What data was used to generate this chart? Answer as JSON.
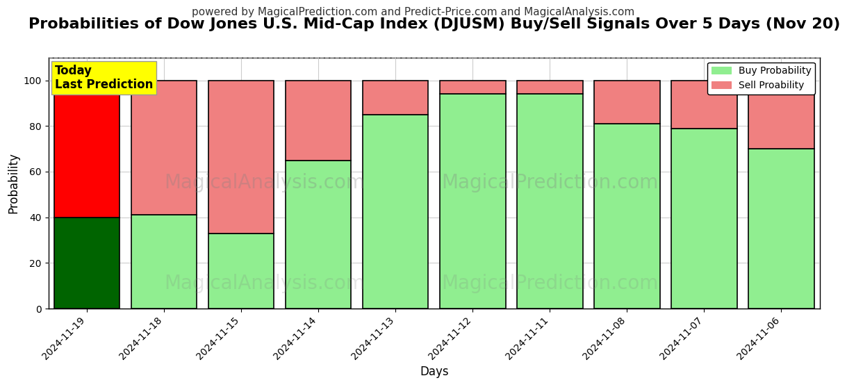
{
  "title": "Probabilities of Dow Jones U.S. Mid-Cap Index (DJUSM) Buy/Sell Signals Over 5 Days (Nov 20)",
  "subtitle": "powered by MagicalPrediction.com and Predict-Price.com and MagicalAnalysis.com",
  "xlabel": "Days",
  "ylabel": "Probability",
  "dates": [
    "2024-11-19",
    "2024-11-18",
    "2024-11-15",
    "2024-11-14",
    "2024-11-13",
    "2024-11-12",
    "2024-11-11",
    "2024-11-08",
    "2024-11-07",
    "2024-11-06"
  ],
  "buy_values": [
    40,
    41,
    33,
    65,
    85,
    94,
    94,
    81,
    79,
    70
  ],
  "sell_values": [
    60,
    59,
    67,
    35,
    15,
    6,
    6,
    19,
    21,
    30
  ],
  "today_buy_color": "#006400",
  "today_sell_color": "#ff0000",
  "buy_color": "#90EE90",
  "sell_color": "#F08080",
  "today_label_bg": "#ffff00",
  "today_label_text": "Today\nLast Prediction",
  "legend_buy": "Buy Probability",
  "legend_sell": "Sell Proability",
  "ylim": [
    0,
    110
  ],
  "yticks": [
    0,
    20,
    40,
    60,
    80,
    100
  ],
  "dashed_line_y": 110,
  "watermark_left": "MagicalAnalysis.com",
  "watermark_right": "MagicalPrediction.com",
  "title_fontsize": 16,
  "subtitle_fontsize": 11,
  "bar_edgecolor": "#000000",
  "bar_edgewidth": 1.2,
  "bar_width": 0.85,
  "facecolor": "#ffffff",
  "grid_color": "#cccccc"
}
